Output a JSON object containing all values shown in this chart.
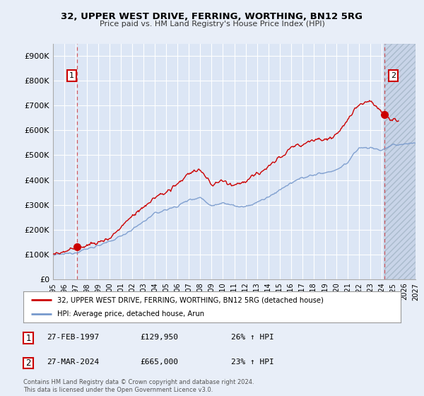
{
  "title": "32, UPPER WEST DRIVE, FERRING, WORTHING, BN12 5RG",
  "subtitle": "Price paid vs. HM Land Registry's House Price Index (HPI)",
  "ylim": [
    0,
    950000
  ],
  "yticks": [
    0,
    100000,
    200000,
    300000,
    400000,
    500000,
    600000,
    700000,
    800000,
    900000
  ],
  "ytick_labels": [
    "£0",
    "£100K",
    "£200K",
    "£300K",
    "£400K",
    "£500K",
    "£600K",
    "£700K",
    "£800K",
    "£900K"
  ],
  "bg_color": "#e8eef8",
  "plot_bg": "#dce6f5",
  "grid_color": "#ffffff",
  "line1_color": "#cc0000",
  "line2_color": "#7799cc",
  "sale1_x": 1997.15,
  "sale1_y": 129950,
  "sale2_x": 2024.25,
  "sale2_y": 665000,
  "hatch_start": 2024.25,
  "legend_label1": "32, UPPER WEST DRIVE, FERRING, WORTHING, BN12 5RG (detached house)",
  "legend_label2": "HPI: Average price, detached house, Arun",
  "table_rows": [
    {
      "num": "1",
      "date": "27-FEB-1997",
      "price": "£129,950",
      "hpi": "26% ↑ HPI"
    },
    {
      "num": "2",
      "date": "27-MAR-2024",
      "price": "£665,000",
      "hpi": "23% ↑ HPI"
    }
  ],
  "footnote": "Contains HM Land Registry data © Crown copyright and database right 2024.\nThis data is licensed under the Open Government Licence v3.0.",
  "xmin": 1995,
  "xmax": 2027
}
